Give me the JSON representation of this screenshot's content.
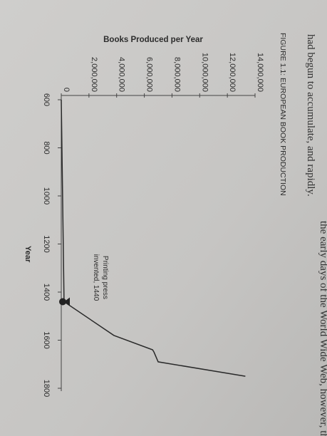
{
  "page_text": {
    "top_line": "had begun to accumulate, and rapidly.",
    "bottom_line": "the early days of the World Wide Web, however, the"
  },
  "chart_data": {
    "type": "line",
    "figure_label": "FIGURE 1.1: EUROPEAN BOOK PRODUCTION",
    "title": "Books Produced per Year",
    "x_label": "Year",
    "annotation": [
      "Printing press",
      "invented, 1440"
    ],
    "annotation_x": 1440,
    "x": [
      600,
      1440,
      1580,
      1640,
      1650,
      1690,
      1750
    ],
    "series": [
      {
        "name": "Books produced",
        "color": "#2a2a2a",
        "values": [
          0,
          200000,
          3800000,
          6600000,
          6700000,
          7000000,
          13300000
        ]
      }
    ],
    "xlim": [
      600,
      1800
    ],
    "xticks": [
      600,
      800,
      1000,
      1200,
      1400,
      1600,
      1800
    ],
    "ylim": [
      0,
      14000000
    ],
    "yticks": [
      0,
      {
        "value": 2000000,
        "label": "2,000,000"
      },
      {
        "value": 4000000,
        "label": "4,000,000"
      },
      {
        "value": 6000000,
        "label": "6,000,000"
      },
      {
        "value": 8000000,
        "label": "8,000,000"
      },
      {
        "value": 10000000,
        "label": "10,000,000"
      },
      {
        "value": 12000000,
        "label": "12,000,000"
      },
      {
        "value": 14000000,
        "label": "14,000,000"
      }
    ]
  }
}
